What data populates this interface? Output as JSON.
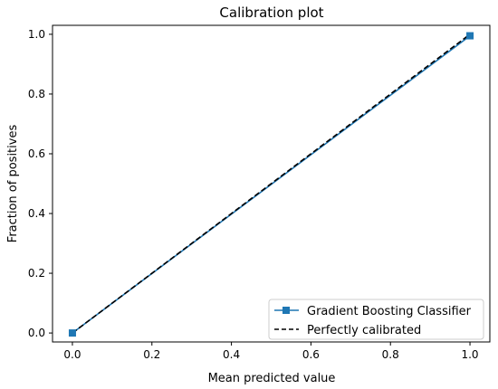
{
  "chart_data": {
    "type": "line",
    "title": "Calibration plot",
    "xlabel": "Mean predicted value",
    "ylabel": "Fraction of positives",
    "xlim": [
      -0.05,
      1.05
    ],
    "ylim": [
      -0.03,
      1.03
    ],
    "x_ticks": [
      0.0,
      0.2,
      0.4,
      0.6,
      0.8,
      1.0
    ],
    "x_tick_labels": [
      "0.0",
      "0.2",
      "0.4",
      "0.6",
      "0.8",
      "1.0"
    ],
    "y_ticks": [
      0.0,
      0.2,
      0.4,
      0.6,
      0.8,
      1.0
    ],
    "y_tick_labels": [
      "0.0",
      "0.2",
      "0.4",
      "0.6",
      "0.8",
      "1.0"
    ],
    "grid": false,
    "legend_position": "lower-right",
    "series": [
      {
        "name": "Gradient Boosting Classifier",
        "x": [
          0.0,
          1.0
        ],
        "y": [
          0.0,
          0.995
        ],
        "color": "#1f77b4",
        "marker": "square",
        "linestyle": "solid"
      },
      {
        "name": "Perfectly calibrated",
        "x": [
          0.0,
          1.0
        ],
        "y": [
          0.0,
          1.0
        ],
        "color": "#000000",
        "marker": "none",
        "linestyle": "dashed"
      }
    ]
  }
}
